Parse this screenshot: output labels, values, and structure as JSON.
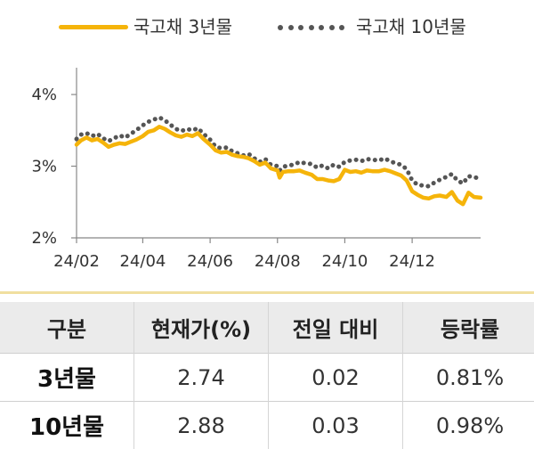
{
  "legend": {
    "series_3y": "국고채 3년물",
    "series_10y": "국고채 10년물"
  },
  "colors": {
    "series_3y": "#f5b40a",
    "series_10y": "#555555",
    "axis": "#888888"
  },
  "chart_data": {
    "type": "line",
    "title": "",
    "xlabel": "",
    "ylabel": "",
    "ylim": [
      2,
      4.2
    ],
    "yticks": [
      "2%",
      "3%",
      "4%"
    ],
    "ytick_values": [
      2,
      3,
      4
    ],
    "xticks": [
      "24/02",
      "24/04",
      "24/06",
      "24/08",
      "24/10",
      "24/12"
    ],
    "xtick_values": [
      "2024-02-01",
      "2024-04-01",
      "2024-06-01",
      "2024-08-01",
      "2024-10-01",
      "2024-12-01"
    ],
    "grid": false,
    "legend_position": "top",
    "series": [
      {
        "name": "국고채 3년물",
        "style": "solid",
        "x": [
          "2024-02-01",
          "2024-02-05",
          "2024-02-10",
          "2024-02-15",
          "2024-02-20",
          "2024-02-25",
          "2024-03-01",
          "2024-03-06",
          "2024-03-11",
          "2024-03-16",
          "2024-03-21",
          "2024-03-26",
          "2024-04-01",
          "2024-04-06",
          "2024-04-11",
          "2024-04-16",
          "2024-04-21",
          "2024-04-26",
          "2024-05-01",
          "2024-05-06",
          "2024-05-11",
          "2024-05-16",
          "2024-05-21",
          "2024-05-26",
          "2024-06-01",
          "2024-06-06",
          "2024-06-11",
          "2024-06-16",
          "2024-06-21",
          "2024-06-26",
          "2024-07-01",
          "2024-07-06",
          "2024-07-11",
          "2024-07-16",
          "2024-07-21",
          "2024-07-26",
          "2024-08-01",
          "2024-08-03",
          "2024-08-06",
          "2024-08-11",
          "2024-08-16",
          "2024-08-21",
          "2024-08-26",
          "2024-09-01",
          "2024-09-06",
          "2024-09-11",
          "2024-09-16",
          "2024-09-21",
          "2024-09-26",
          "2024-10-01",
          "2024-10-06",
          "2024-10-11",
          "2024-10-16",
          "2024-10-21",
          "2024-10-26",
          "2024-11-01",
          "2024-11-06",
          "2024-11-11",
          "2024-11-16",
          "2024-11-21",
          "2024-11-26",
          "2024-12-01",
          "2024-12-06",
          "2024-12-11",
          "2024-12-16",
          "2024-12-21",
          "2024-12-26",
          "2025-01-01",
          "2025-01-06",
          "2025-01-11",
          "2025-01-16",
          "2025-01-21",
          "2025-01-26",
          "2025-02-01"
        ],
        "values": [
          3.3,
          3.36,
          3.4,
          3.36,
          3.38,
          3.33,
          3.27,
          3.3,
          3.32,
          3.31,
          3.34,
          3.37,
          3.42,
          3.48,
          3.5,
          3.55,
          3.52,
          3.47,
          3.43,
          3.41,
          3.44,
          3.42,
          3.46,
          3.38,
          3.3,
          3.22,
          3.19,
          3.2,
          3.16,
          3.14,
          3.13,
          3.11,
          3.07,
          3.02,
          3.05,
          2.97,
          2.94,
          2.84,
          2.92,
          2.93,
          2.93,
          2.94,
          2.91,
          2.88,
          2.82,
          2.82,
          2.8,
          2.79,
          2.82,
          2.95,
          2.92,
          2.93,
          2.91,
          2.94,
          2.93,
          2.93,
          2.95,
          2.93,
          2.9,
          2.87,
          2.8,
          2.65,
          2.6,
          2.56,
          2.55,
          2.58,
          2.59,
          2.57,
          2.64,
          2.52,
          2.47,
          2.63,
          2.57,
          2.56
        ]
      },
      {
        "name": "국고채 10년물",
        "style": "dotted",
        "x": [
          "2024-02-01",
          "2024-02-05",
          "2024-02-10",
          "2024-02-15",
          "2024-02-20",
          "2024-02-25",
          "2024-03-01",
          "2024-03-06",
          "2024-03-11",
          "2024-03-16",
          "2024-03-21",
          "2024-03-26",
          "2024-04-01",
          "2024-04-06",
          "2024-04-11",
          "2024-04-16",
          "2024-04-21",
          "2024-04-26",
          "2024-05-01",
          "2024-05-06",
          "2024-05-11",
          "2024-05-16",
          "2024-05-21",
          "2024-05-26",
          "2024-06-01",
          "2024-06-06",
          "2024-06-11",
          "2024-06-16",
          "2024-06-21",
          "2024-06-26",
          "2024-07-01",
          "2024-07-06",
          "2024-07-11",
          "2024-07-16",
          "2024-07-21",
          "2024-07-26",
          "2024-08-01",
          "2024-08-03",
          "2024-08-06",
          "2024-08-11",
          "2024-08-16",
          "2024-08-21",
          "2024-08-26",
          "2024-09-01",
          "2024-09-06",
          "2024-09-11",
          "2024-09-16",
          "2024-09-21",
          "2024-09-26",
          "2024-10-01",
          "2024-10-06",
          "2024-10-11",
          "2024-10-16",
          "2024-10-21",
          "2024-10-26",
          "2024-11-01",
          "2024-11-06",
          "2024-11-11",
          "2024-11-16",
          "2024-11-21",
          "2024-11-26",
          "2024-12-01",
          "2024-12-06",
          "2024-12-11",
          "2024-12-16",
          "2024-12-21",
          "2024-12-26",
          "2025-01-01",
          "2025-01-06",
          "2025-01-11",
          "2025-01-16",
          "2025-01-21",
          "2025-01-26",
          "2025-02-01"
        ],
        "values": [
          3.38,
          3.44,
          3.46,
          3.42,
          3.45,
          3.39,
          3.35,
          3.39,
          3.43,
          3.4,
          3.45,
          3.5,
          3.57,
          3.62,
          3.65,
          3.68,
          3.64,
          3.58,
          3.52,
          3.49,
          3.52,
          3.5,
          3.53,
          3.45,
          3.37,
          3.27,
          3.25,
          3.26,
          3.21,
          3.18,
          3.15,
          3.17,
          3.11,
          3.06,
          3.1,
          3.02,
          3.0,
          2.94,
          2.99,
          3.01,
          3.02,
          3.06,
          3.04,
          3.03,
          2.98,
          3.01,
          2.97,
          3.02,
          2.99,
          3.06,
          3.08,
          3.09,
          3.07,
          3.1,
          3.09,
          3.08,
          3.11,
          3.07,
          3.04,
          3.02,
          2.96,
          2.8,
          2.74,
          2.73,
          2.72,
          2.77,
          2.81,
          2.85,
          2.89,
          2.8,
          2.76,
          2.86,
          2.85,
          2.82
        ]
      }
    ]
  },
  "summary_table": {
    "headers": [
      "구분",
      "현재가(%)",
      "전일 대비",
      "등락률"
    ],
    "rows": [
      [
        "3년물",
        "2.74",
        "0.02",
        "0.81%"
      ],
      [
        "10년물",
        "2.88",
        "0.03",
        "0.98%"
      ]
    ]
  }
}
